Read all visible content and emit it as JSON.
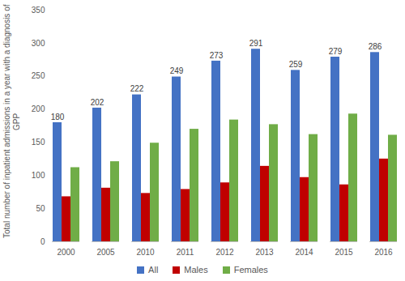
{
  "chart_data": {
    "type": "bar",
    "y_label": "Total number of inpatient admissions in a year with a diagnosis of GPP",
    "categories": [
      "2000",
      "2005",
      "2010",
      "2011",
      "2012",
      "2013",
      "2014",
      "2015",
      "2016"
    ],
    "series": [
      {
        "name": "All",
        "color": "#4472c4",
        "data_labels": true,
        "values": [
          180,
          202,
          222,
          249,
          273,
          291,
          259,
          279,
          286
        ]
      },
      {
        "name": "Males",
        "color": "#c00000",
        "values": [
          68,
          81,
          73,
          79,
          89,
          114,
          97,
          86,
          125
        ]
      },
      {
        "name": "Females",
        "color": "#70ad47",
        "values": [
          112,
          121,
          149,
          170,
          184,
          177,
          162,
          193,
          161
        ]
      }
    ],
    "ylim": [
      0,
      350
    ],
    "yticks": [
      0,
      50,
      100,
      150,
      200,
      250,
      300,
      350
    ],
    "grid": false,
    "legend": "bottom"
  }
}
